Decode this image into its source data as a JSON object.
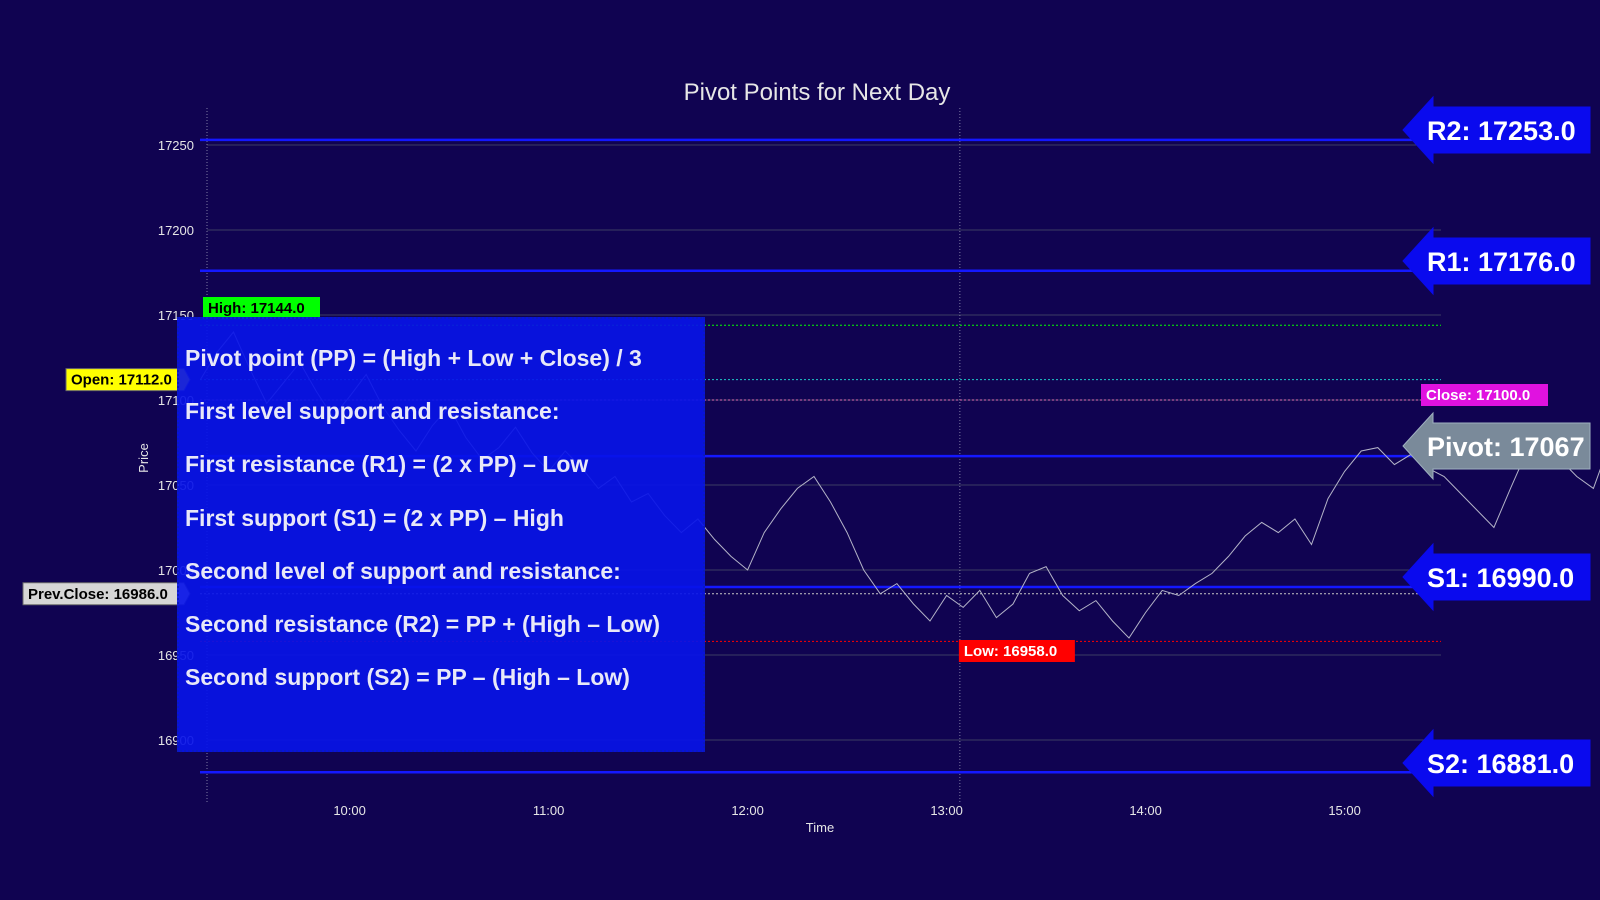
{
  "chart_data": {
    "type": "line",
    "title": "Pivot Points for Next Day",
    "xlabel": "Time",
    "ylabel": "Price",
    "x_ticks": [
      "10:00",
      "11:00",
      "12:00",
      "13:00",
      "14:00",
      "15:00"
    ],
    "y_ticks": [
      16900,
      16950,
      17000,
      17050,
      17100,
      17150,
      17200,
      17250
    ],
    "ylim": [
      16866,
      17272
    ],
    "x_range": [
      "09:17",
      "15:30"
    ],
    "grid": true,
    "levels": {
      "r2": {
        "label": "R2: 17253.0",
        "value": 17253.0
      },
      "r1": {
        "label": "R1: 17176.0",
        "value": 17176.0
      },
      "pivot": {
        "label": "Pivot: 17067",
        "value": 17067
      },
      "s1": {
        "label": "S1: 16990.0",
        "value": 16990.0
      },
      "s2": {
        "label": "S2: 16881.0",
        "value": 16881.0
      }
    },
    "markers": {
      "high": {
        "label": "High: 17144.0",
        "value": 17144.0,
        "time": "09:17"
      },
      "low": {
        "label": "Low: 16958.0",
        "value": 16958.0,
        "time": "13:04"
      },
      "open": {
        "label": "Open: 17112.0",
        "value": 17112.0
      },
      "close": {
        "label": "Close: 17100.0",
        "value": 17100.0
      },
      "prev_close": {
        "label": "Prev.Close: 16986.0",
        "value": 16986.0
      }
    },
    "price_series": {
      "interval": "5min",
      "start": "09:15",
      "values": [
        17112,
        17128,
        17140,
        17118,
        17098,
        17110,
        17122,
        17105,
        17090,
        17102,
        17115,
        17096,
        17082,
        17070,
        17085,
        17096,
        17078,
        17065,
        17072,
        17084,
        17069,
        17058,
        17070,
        17060,
        17048,
        17055,
        17040,
        17045,
        17032,
        17022,
        17030,
        17018,
        17008,
        17000,
        17022,
        17036,
        17048,
        17055,
        17040,
        17022,
        17000,
        16986,
        16992,
        16980,
        16970,
        16985,
        16978,
        16988,
        16972,
        16980,
        16998,
        17002,
        16985,
        16976,
        16982,
        16970,
        16960,
        16975,
        16988,
        16985,
        16992,
        16998,
        17008,
        17020,
        17028,
        17022,
        17030,
        17015,
        17042,
        17058,
        17070,
        17072,
        17062,
        17068,
        17060,
        17055,
        17045,
        17035,
        17025,
        17048,
        17070,
        17060,
        17065,
        17055,
        17048,
        17075,
        17095,
        17112,
        17100,
        17120,
        17108,
        17115,
        17102,
        17095,
        17108,
        17120,
        17112
      ]
    },
    "colors": {
      "background": "#100351",
      "price": "#b4b4c8",
      "level_line": "#1418ff",
      "high": "#00ff00",
      "low": "#ff0000",
      "open": "#ffff00",
      "close": "#e012e0",
      "prev_close": "#d6d6d6",
      "pivot_arrow": "#7a8a9a",
      "level_arrow": "#0a0aee"
    }
  },
  "formulas": [
    "Pivot point (PP) = (High + Low + Close) / 3",
    "First level support and resistance:",
    "First resistance (R1) = (2 x PP) – Low",
    "First support (S1) = (2 x PP) – High",
    "Second level of support and resistance:",
    "Second resistance (R2) = PP + (High – Low)",
    "Second support (S2) = PP – (High – Low)"
  ]
}
